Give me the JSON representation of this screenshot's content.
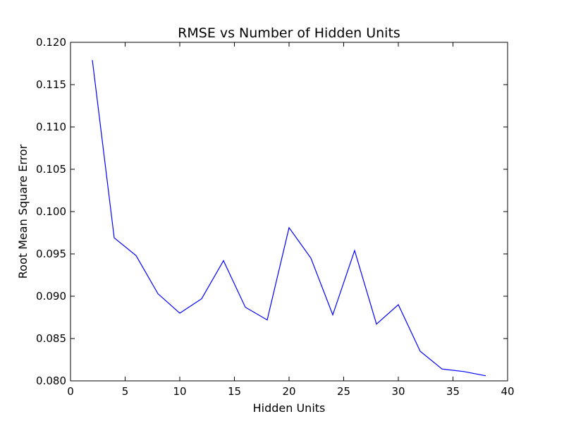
{
  "chart_data": {
    "type": "line",
    "title": "RMSE vs Number of Hidden Units",
    "xlabel": "Hidden Units",
    "ylabel": "Root Mean Square Error",
    "xlim": [
      0,
      40
    ],
    "ylim": [
      0.08,
      0.12
    ],
    "xticks": [
      0,
      5,
      10,
      15,
      20,
      25,
      30,
      35,
      40
    ],
    "xtick_labels": [
      "0",
      "5",
      "10",
      "15",
      "20",
      "25",
      "30",
      "35",
      "40"
    ],
    "yticks": [
      0.08,
      0.085,
      0.09,
      0.095,
      0.1,
      0.105,
      0.11,
      0.115,
      0.12
    ],
    "ytick_labels": [
      "0.080",
      "0.085",
      "0.090",
      "0.095",
      "0.100",
      "0.105",
      "0.110",
      "0.115",
      "0.120"
    ],
    "grid": false,
    "legend": "none",
    "series": [
      {
        "color": "#0000ff",
        "x": [
          2,
          4,
          6,
          8,
          10,
          12,
          14,
          16,
          18,
          20,
          22,
          24,
          26,
          28,
          30,
          32,
          34,
          36,
          38
        ],
        "y": [
          0.1179,
          0.0969,
          0.0948,
          0.0903,
          0.088,
          0.0897,
          0.0942,
          0.0887,
          0.0872,
          0.0981,
          0.0945,
          0.0878,
          0.0954,
          0.0867,
          0.089,
          0.0835,
          0.0814,
          0.0811,
          0.0806
        ]
      }
    ]
  }
}
